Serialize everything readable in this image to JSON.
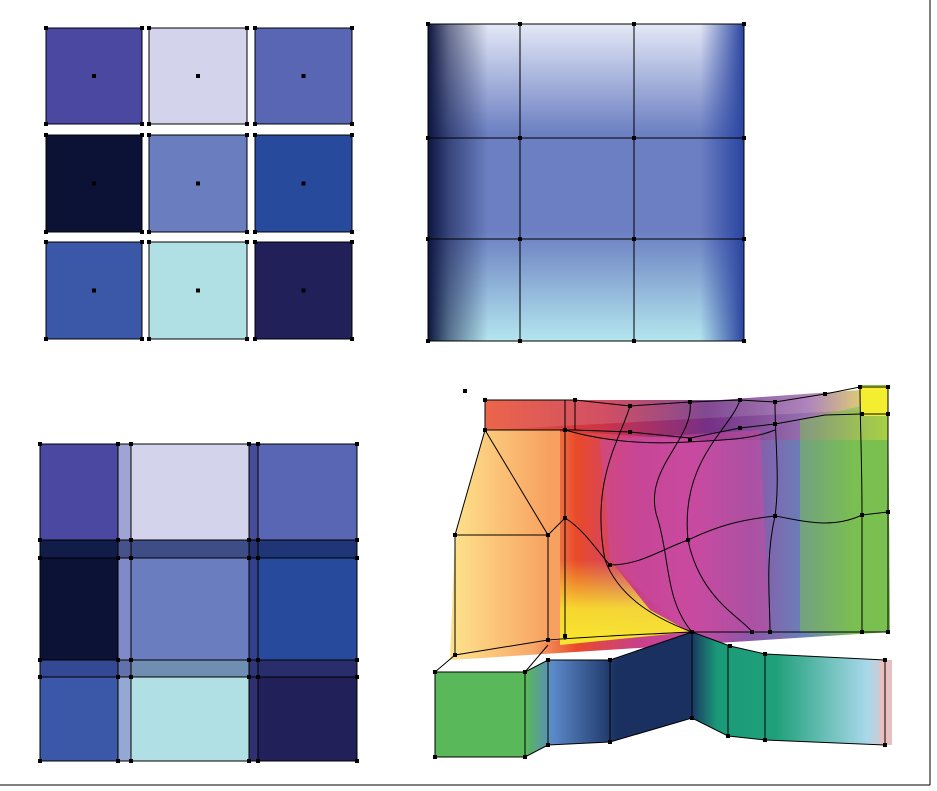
{
  "figure": {
    "panels": [
      {
        "id": "separate-patches",
        "colors": [
          [
            "#4a48a0",
            "#d3d4ec",
            "#5866b4"
          ],
          [
            "#0b1235",
            "#6a7ebf",
            "#284a9c"
          ],
          [
            "#3b57a8",
            "#b0e0e4",
            "#222058"
          ]
        ]
      },
      {
        "id": "smooth-mesh",
        "base_color": "#6b7fc2",
        "edge_colors": {
          "left": "#0d1540",
          "top": "#d6dcf2",
          "bottom": "#a8e0ea",
          "right": "#2e4aa0"
        }
      },
      {
        "id": "blended-grid",
        "colors": [
          [
            "#4a48a0",
            "#d3d4ec",
            "#5866b4"
          ],
          [
            "#0b1235",
            "#6a7ebf",
            "#284a9c"
          ],
          [
            "#3b57a8",
            "#b0e0e4",
            "#222058"
          ]
        ]
      },
      {
        "id": "warped-mesh",
        "upper_gradient": [
          "#fde08a",
          "#f7a868",
          "#e84a2a",
          "#d0409a",
          "#9a50a8",
          "#5a78b8",
          "#7ac050",
          "#f4ee30"
        ],
        "lower_gradient": [
          "#58b85a",
          "#5a88c8",
          "#1a3060",
          "#1a9a78",
          "#a8d8ea",
          "#e8c0c0"
        ]
      }
    ]
  }
}
